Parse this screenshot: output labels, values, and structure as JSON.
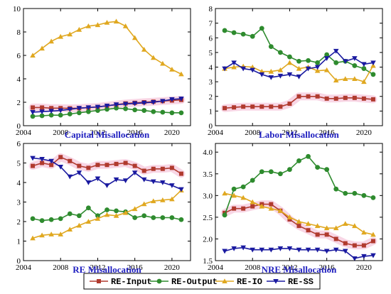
{
  "colors": {
    "RE-Input": "#b03a2e",
    "RE-Output": "#2e8b2e",
    "RE-IO": "#e0a820",
    "RE-SS": "#1a1aa0",
    "band": "#f7cfe0",
    "title": "#1f1fc0"
  },
  "chart_data": [
    {
      "type": "line",
      "title": "Capital Misallocation",
      "xlim": [
        2004,
        2022
      ],
      "ylim": [
        0,
        10
      ],
      "xticks": [
        2004,
        2008,
        2012,
        2016,
        2020
      ],
      "yticks": [
        0,
        2,
        4,
        6,
        8,
        10
      ],
      "x": [
        2005,
        2006,
        2007,
        2008,
        2009,
        2010,
        2011,
        2012,
        2013,
        2014,
        2015,
        2016,
        2017,
        2018,
        2019,
        2020,
        2021
      ],
      "series": [
        {
          "name": "RE-Input",
          "values": [
            1.55,
            1.55,
            1.5,
            1.5,
            1.48,
            1.5,
            1.55,
            1.6,
            1.7,
            1.8,
            1.9,
            1.95,
            2.0,
            2.05,
            2.1,
            2.15,
            2.2
          ]
        },
        {
          "name": "RE-Output",
          "values": [
            0.8,
            0.85,
            0.9,
            0.9,
            1.0,
            1.1,
            1.2,
            1.3,
            1.4,
            1.5,
            1.45,
            1.35,
            1.3,
            1.2,
            1.15,
            1.1,
            1.1
          ]
        },
        {
          "name": "RE-IO",
          "values": [
            6.0,
            6.6,
            7.2,
            7.6,
            7.8,
            8.2,
            8.5,
            8.6,
            8.8,
            8.9,
            8.5,
            7.5,
            6.5,
            5.8,
            5.3,
            4.8,
            4.4
          ]
        },
        {
          "name": "RE-SS",
          "values": [
            1.15,
            1.2,
            1.25,
            1.3,
            1.4,
            1.5,
            1.55,
            1.6,
            1.7,
            1.8,
            1.85,
            1.9,
            1.95,
            2.0,
            2.1,
            2.25,
            2.3
          ]
        }
      ]
    },
    {
      "type": "line",
      "title": "Labor Misallocation",
      "xlim": [
        2004,
        2022
      ],
      "ylim": [
        0,
        8
      ],
      "xticks": [
        2004,
        2008,
        2012,
        2016,
        2020
      ],
      "yticks": [
        0,
        1,
        2,
        3,
        4,
        5,
        6,
        7,
        8
      ],
      "x": [
        2005,
        2006,
        2007,
        2008,
        2009,
        2010,
        2011,
        2012,
        2013,
        2014,
        2015,
        2016,
        2017,
        2018,
        2019,
        2020,
        2021
      ],
      "series": [
        {
          "name": "RE-Input",
          "values": [
            1.2,
            1.25,
            1.3,
            1.3,
            1.3,
            1.3,
            1.3,
            1.5,
            2.0,
            2.0,
            2.0,
            1.85,
            1.85,
            1.9,
            1.9,
            1.85,
            1.8
          ]
        },
        {
          "name": "RE-Output",
          "values": [
            6.5,
            6.35,
            6.25,
            6.1,
            6.65,
            5.4,
            5.0,
            4.7,
            4.4,
            4.45,
            4.3,
            4.85,
            4.3,
            4.4,
            4.1,
            3.9,
            3.5
          ]
        },
        {
          "name": "RE-IO",
          "values": [
            3.9,
            4.0,
            4.05,
            4.0,
            3.7,
            3.7,
            3.8,
            4.3,
            3.9,
            4.0,
            3.75,
            3.8,
            3.1,
            3.2,
            3.2,
            3.0,
            4.1
          ]
        },
        {
          "name": "RE-SS",
          "values": [
            3.9,
            4.3,
            3.9,
            3.8,
            3.5,
            3.3,
            3.4,
            3.5,
            3.35,
            3.9,
            4.0,
            4.6,
            5.1,
            4.4,
            4.6,
            4.2,
            4.3
          ]
        }
      ]
    },
    {
      "type": "line",
      "title": "RE Misallocation",
      "xlim": [
        2004,
        2022
      ],
      "ylim": [
        0,
        6
      ],
      "xticks": [
        2004,
        2008,
        2012,
        2016,
        2020
      ],
      "yticks": [
        0,
        1,
        2,
        3,
        4,
        5,
        6
      ],
      "x": [
        2005,
        2006,
        2007,
        2008,
        2009,
        2010,
        2011,
        2012,
        2013,
        2014,
        2015,
        2016,
        2017,
        2018,
        2019,
        2020,
        2021
      ],
      "series": [
        {
          "name": "RE-Input",
          "values": [
            4.85,
            5.0,
            4.9,
            5.3,
            5.1,
            4.85,
            4.75,
            4.9,
            4.9,
            4.95,
            5.0,
            4.85,
            4.6,
            4.7,
            4.7,
            4.75,
            4.45
          ]
        },
        {
          "name": "RE-Output",
          "values": [
            2.15,
            2.05,
            2.1,
            2.15,
            2.4,
            2.3,
            2.7,
            2.3,
            2.6,
            2.55,
            2.5,
            2.2,
            2.3,
            2.2,
            2.2,
            2.2,
            2.1
          ]
        },
        {
          "name": "RE-IO",
          "values": [
            1.15,
            1.3,
            1.35,
            1.35,
            1.6,
            1.8,
            2.0,
            2.15,
            2.35,
            2.3,
            2.45,
            2.65,
            2.9,
            3.05,
            3.1,
            3.15,
            3.6
          ]
        },
        {
          "name": "RE-SS",
          "values": [
            5.25,
            5.2,
            5.1,
            4.8,
            4.3,
            4.5,
            4.0,
            4.2,
            3.85,
            4.15,
            4.1,
            4.5,
            4.15,
            4.05,
            4.0,
            3.85,
            3.65
          ]
        }
      ]
    },
    {
      "type": "line",
      "title": "NRE Misallocation",
      "xlim": [
        2004,
        2022
      ],
      "ylim": [
        1.5,
        4.2
      ],
      "xticks": [
        2004,
        2008,
        2012,
        2016,
        2020
      ],
      "yticks": [
        1.5,
        2.0,
        2.5,
        3.0,
        3.5,
        4.0
      ],
      "ytick_labels": [
        "1.5",
        "2.0",
        "2.5",
        "3.0",
        "3.5",
        "4.0"
      ],
      "x": [
        2005,
        2006,
        2007,
        2008,
        2009,
        2010,
        2011,
        2012,
        2013,
        2014,
        2015,
        2016,
        2017,
        2018,
        2019,
        2020,
        2021
      ],
      "series": [
        {
          "name": "RE-Input",
          "values": [
            2.6,
            2.7,
            2.7,
            2.75,
            2.8,
            2.8,
            2.65,
            2.45,
            2.3,
            2.2,
            2.1,
            2.1,
            2.0,
            1.9,
            1.85,
            1.85,
            1.95
          ]
        },
        {
          "name": "RE-Output",
          "values": [
            2.55,
            3.15,
            3.2,
            3.35,
            3.55,
            3.55,
            3.5,
            3.6,
            3.8,
            3.9,
            3.65,
            3.6,
            3.15,
            3.05,
            3.05,
            3.0,
            2.95
          ]
        },
        {
          "name": "RE-IO",
          "values": [
            3.05,
            3.0,
            2.95,
            2.85,
            2.75,
            2.7,
            2.65,
            2.5,
            2.4,
            2.35,
            2.3,
            2.25,
            2.25,
            2.35,
            2.3,
            2.15,
            2.1
          ]
        },
        {
          "name": "RE-SS",
          "values": [
            1.72,
            1.78,
            1.8,
            1.75,
            1.75,
            1.75,
            1.78,
            1.78,
            1.75,
            1.75,
            1.75,
            1.72,
            1.75,
            1.72,
            1.55,
            1.6,
            1.62
          ]
        }
      ]
    }
  ],
  "legend": [
    "RE-Input",
    "RE-Output",
    "RE-IO",
    "RE-SS"
  ]
}
